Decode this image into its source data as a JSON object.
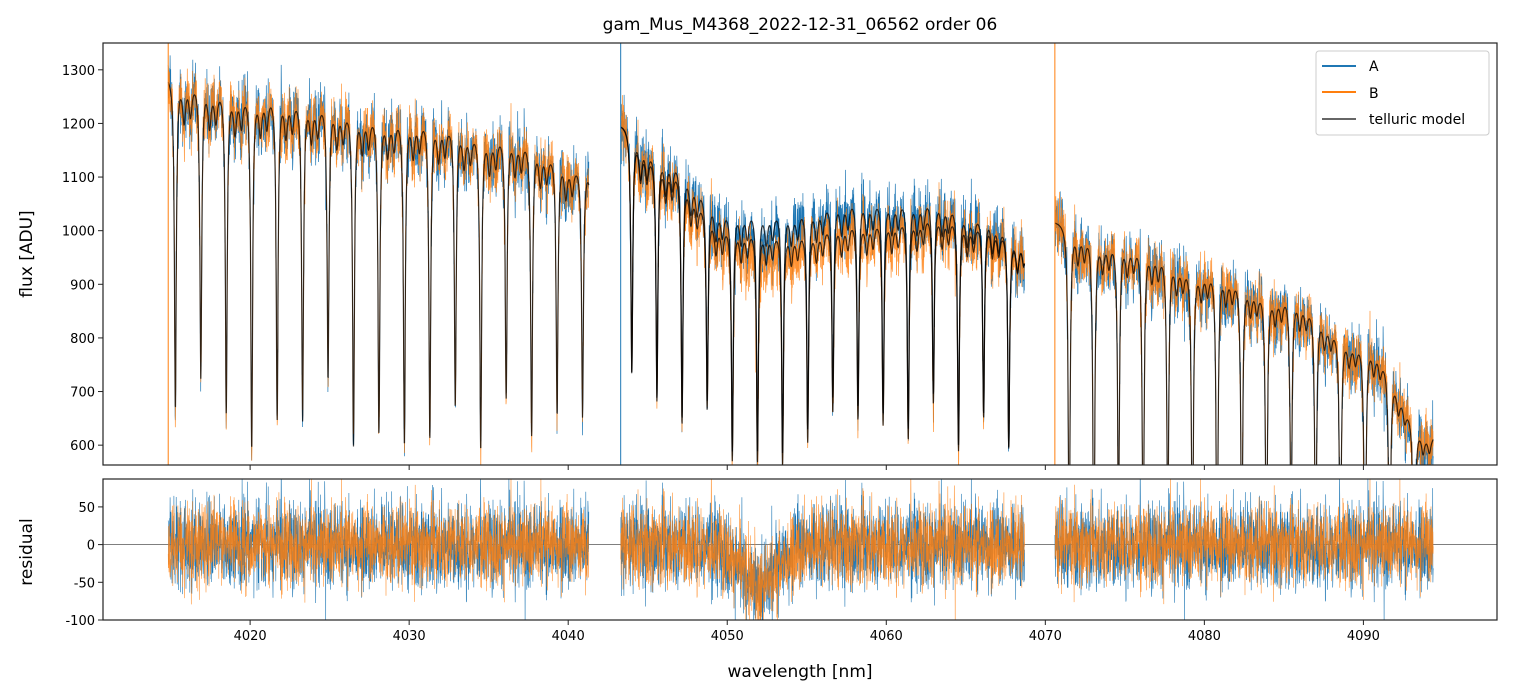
{
  "chart_data": {
    "type": "line",
    "title": "gam_Mus_M4368_2022-12-31_06562  order 06",
    "xlabel": "wavelength [nm]",
    "panels": [
      {
        "name": "flux",
        "ylabel": "flux [ADU]",
        "ylim": [
          563,
          1350
        ],
        "yticks": [
          600,
          700,
          800,
          900,
          1000,
          1100,
          1200,
          1300
        ]
      },
      {
        "name": "residual",
        "ylabel": "residual",
        "ylim": [
          -100,
          87
        ],
        "yticks": [
          -100,
          -50,
          0,
          50
        ]
      }
    ],
    "xlim": [
      4010.75,
      4098.4
    ],
    "xticks": [
      4020,
      4030,
      4040,
      4050,
      4060,
      4070,
      4080,
      4090
    ],
    "legend": {
      "position": "top-right",
      "entries": [
        "A",
        "B",
        "telluric model"
      ]
    },
    "colors": {
      "A": "#1f77b4",
      "B": "#ff7f0e",
      "model": "#333333"
    },
    "segments": [
      {
        "range": [
          4014.85,
          4041.3
        ],
        "continuum_A": [
          [
            4015,
            1295
          ],
          [
            4020,
            1270
          ],
          [
            4030,
            1225
          ],
          [
            4036,
            1190
          ],
          [
            4041.3,
            1130
          ]
        ],
        "continuum_B_offset": 0,
        "line_start": 4015.3,
        "line_spacing": 1.6,
        "line_depth": 0.46
      },
      {
        "range": [
          4043.3,
          4068.7
        ],
        "continuum_A": [
          [
            4043.4,
            1200
          ],
          [
            4046,
            1150
          ],
          [
            4050,
            1050
          ],
          [
            4054,
            1050
          ],
          [
            4058,
            1070
          ],
          [
            4063,
            1070
          ],
          [
            4066,
            1040
          ],
          [
            4068.7,
            990
          ]
        ],
        "continuum_B_offset": -42,
        "line_start": 4044.0,
        "line_spacing": 1.58,
        "line_depth": 0.4
      },
      {
        "range": [
          4070.6,
          4094.4
        ],
        "continuum_A": [
          [
            4070.7,
            1020
          ],
          [
            4075,
            990
          ],
          [
            4080,
            940
          ],
          [
            4085,
            890
          ],
          [
            4090,
            800
          ],
          [
            4094.4,
            620
          ]
        ],
        "continuum_B_offset": 0,
        "line_start": 4071.5,
        "line_spacing": 1.55,
        "line_depth": 0.6
      }
    ],
    "noise_sigma_A": 28,
    "noise_sigma_B": 26,
    "residual_feature": {
      "center": 4052,
      "width": 1.6,
      "depth": -55
    }
  }
}
